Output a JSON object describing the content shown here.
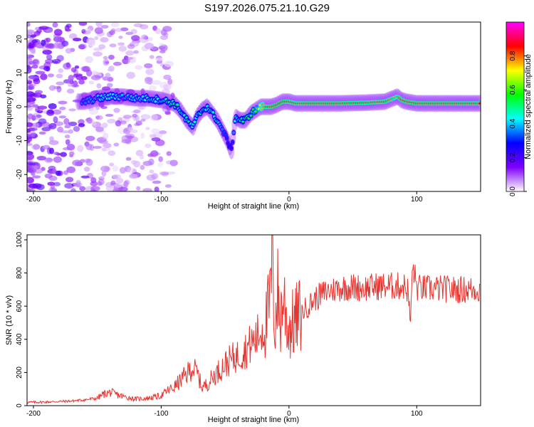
{
  "title": "S197.2026.075.21.10.G29",
  "chart_data": [
    {
      "type": "heatmap",
      "name": "spectrogram",
      "xlabel": "Height of straight line (km)",
      "ylabel": "Frequency (Hz)",
      "xlim": [
        -205,
        150
      ],
      "ylim": [
        -25,
        25
      ],
      "xticks": [
        -200,
        -100,
        0,
        100
      ],
      "yticks": [
        -20,
        -10,
        0,
        10,
        20
      ],
      "colorbar": {
        "label": "Normalized spectral amplitude",
        "range": [
          0,
          1
        ],
        "ticks": [
          "0.0",
          "0.2",
          "0.4",
          "0.6",
          "0.8"
        ],
        "colormap": [
          "#ffffff",
          "#7f00ff",
          "#0000ff",
          "#00ffff",
          "#00ff00",
          "#ffff00",
          "#ff0000",
          "#ff00ff"
        ]
      },
      "ridge": {
        "x": [
          -160,
          -150,
          -140,
          -130,
          -120,
          -110,
          -100,
          -90,
          -85,
          -80,
          -75,
          -72,
          -68,
          -64,
          -60,
          -56,
          -52,
          -48,
          -45,
          -42,
          -38,
          -34,
          -30,
          -26,
          -22,
          -18,
          -14,
          -10,
          -5,
          0,
          5,
          10,
          20,
          40,
          60,
          75,
          85,
          88,
          92,
          100,
          120,
          150
        ],
        "freq": [
          1.5,
          2.5,
          3,
          3,
          2.5,
          2.5,
          2,
          1,
          -1,
          -4,
          -6,
          -3,
          -1,
          0,
          -2,
          -4,
          -7,
          -10,
          -13,
          -3,
          -4,
          -4,
          -2,
          -1,
          0,
          0,
          0,
          0.5,
          1.5,
          1.5,
          1,
          1,
          1,
          1,
          1.2,
          1.5,
          3,
          2,
          1.5,
          1,
          1,
          1
        ],
        "amplitude": [
          0.35,
          0.4,
          0.45,
          0.4,
          0.4,
          0.45,
          0.45,
          0.5,
          0.45,
          0.5,
          0.45,
          0.45,
          0.5,
          0.45,
          0.45,
          0.45,
          0.35,
          0.3,
          0.25,
          0.45,
          0.5,
          0.55,
          0.55,
          0.6,
          0.75,
          0.85,
          0.9,
          0.95,
          0.9,
          0.85,
          0.85,
          0.85,
          0.9,
          0.9,
          0.85,
          0.85,
          0.8,
          0.85,
          0.9,
          0.9,
          0.9,
          0.85
        ]
      }
    },
    {
      "type": "line",
      "name": "snr",
      "xlabel": "Height of straight line (km)",
      "ylabel": "SNR (10 * v/v)",
      "xlim": [
        -205,
        150
      ],
      "ylim": [
        0,
        1030
      ],
      "xticks": [
        -200,
        -100,
        0,
        100
      ],
      "yticks": [
        0,
        200,
        400,
        600,
        800,
        1000
      ],
      "color": "#e8342f",
      "x": [
        -205,
        -190,
        -180,
        -170,
        -160,
        -150,
        -145,
        -140,
        -130,
        -120,
        -110,
        -100,
        -95,
        -90,
        -85,
        -80,
        -76,
        -72,
        -68,
        -64,
        -60,
        -55,
        -50,
        -45,
        -40,
        -35,
        -30,
        -26,
        -22,
        -18,
        -15,
        -13,
        -11,
        -9,
        -7,
        -5,
        -3,
        -1,
        2,
        5,
        8,
        12,
        16,
        20,
        25,
        30,
        35,
        40,
        45,
        50,
        60,
        70,
        80,
        90,
        93,
        95,
        97,
        100,
        110,
        120,
        130,
        140,
        150
      ],
      "y": [
        20,
        22,
        25,
        28,
        35,
        45,
        70,
        80,
        55,
        40,
        45,
        60,
        90,
        110,
        150,
        190,
        230,
        200,
        110,
        130,
        170,
        210,
        250,
        280,
        300,
        330,
        370,
        400,
        450,
        490,
        620,
        900,
        450,
        700,
        480,
        650,
        600,
        470,
        480,
        510,
        540,
        580,
        610,
        640,
        670,
        690,
        700,
        710,
        715,
        715,
        710,
        720,
        720,
        720,
        700,
        500,
        850,
        710,
        705,
        705,
        700,
        700,
        700
      ]
    }
  ]
}
